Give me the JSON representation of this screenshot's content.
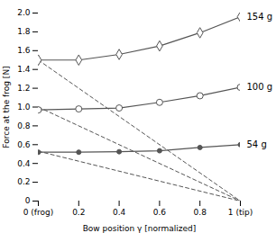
{
  "chart_data": {
    "type": "line",
    "x_label": "Bow position γ [normalized]",
    "y_label": "Force at the frog [N]",
    "xlim": [
      0,
      1
    ],
    "ylim": [
      0,
      2
    ],
    "xticks": [
      {
        "value": 0,
        "label": "0 (frog)"
      },
      0.2,
      0.4,
      0.6,
      0.8,
      {
        "value": 1.0,
        "label": "1 (tip)"
      }
    ],
    "yticks": [
      0,
      0.2,
      0.4,
      0.6,
      0.8,
      {
        "value": 1.0,
        "label": "1.0"
      },
      1.2,
      1.4,
      1.6,
      1.8,
      {
        "value": 2.0,
        "label": "2.0"
      }
    ],
    "grid": false,
    "color": "#555555",
    "series": [
      {
        "name": "154 g",
        "x": [
          0,
          0.2,
          0.4,
          0.6,
          0.8,
          1.0
        ],
        "values": [
          1.5,
          1.5,
          1.56,
          1.65,
          1.79,
          1.96
        ],
        "marker": "diamond_open",
        "line_style": "solid"
      },
      {
        "name": "100 g",
        "x": [
          0,
          0.2,
          0.4,
          0.6,
          0.8,
          1.0
        ],
        "values": [
          0.97,
          0.98,
          0.99,
          1.05,
          1.12,
          1.21
        ],
        "marker": "circle_open",
        "line_style": "solid"
      },
      {
        "name": "54 g",
        "x": [
          0,
          0.2,
          0.4,
          0.6,
          0.8,
          1.0
        ],
        "values": [
          0.52,
          0.52,
          0.525,
          0.535,
          0.57,
          0.6
        ],
        "marker": "circle_filled",
        "line_style": "solid"
      },
      {
        "x": [
          0,
          1.0
        ],
        "values": [
          1.5,
          0.0
        ],
        "line_style": "dashed"
      },
      {
        "x": [
          0,
          1.0
        ],
        "values": [
          1.0,
          0.0
        ],
        "line_style": "dashed"
      },
      {
        "x": [
          0,
          1.0
        ],
        "values": [
          0.53,
          0.0
        ],
        "line_style": "dashed"
      }
    ]
  }
}
